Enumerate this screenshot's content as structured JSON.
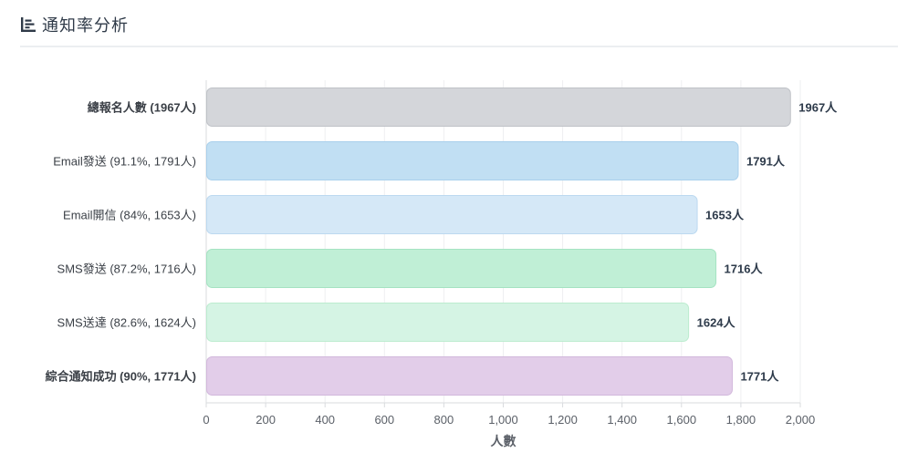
{
  "header": {
    "title": "通知率分析",
    "icon": "bar-chart-icon"
  },
  "chart_data": {
    "type": "bar",
    "orientation": "horizontal",
    "categories": [
      "總報名人數 (1967人)",
      "Email發送 (91.1%, 1791人)",
      "Email開信 (84%, 1653人)",
      "SMS發送 (87.2%, 1716人)",
      "SMS送達 (82.6%, 1624人)",
      "綜合通知成功 (90%, 1771人)"
    ],
    "bold_categories": [
      0,
      5
    ],
    "values": [
      1967,
      1791,
      1653,
      1716,
      1624,
      1771
    ],
    "value_labels": [
      "1967人",
      "1791人",
      "1653人",
      "1716人",
      "1624人",
      "1771人"
    ],
    "colors": [
      "#d4d6da",
      "#c1dff3",
      "#d5e8f7",
      "#c0efd6",
      "#d5f4e4",
      "#e2cde9"
    ],
    "borders": [
      "#bfc2c7",
      "#a9d0ec",
      "#bcd9f0",
      "#a5e3c2",
      "#bceccf",
      "#d2b8dc"
    ],
    "xlim": [
      0,
      2000
    ],
    "xticks": [
      0,
      200,
      400,
      600,
      800,
      1000,
      1200,
      1400,
      1600,
      1800,
      2000
    ],
    "xtick_labels": [
      "0",
      "200",
      "400",
      "600",
      "800",
      "1,000",
      "1,200",
      "1,400",
      "1,600",
      "1,800",
      "2,000"
    ],
    "xlabel": "人數",
    "ylabel": "",
    "title": "",
    "grid": true,
    "legend": "none"
  }
}
